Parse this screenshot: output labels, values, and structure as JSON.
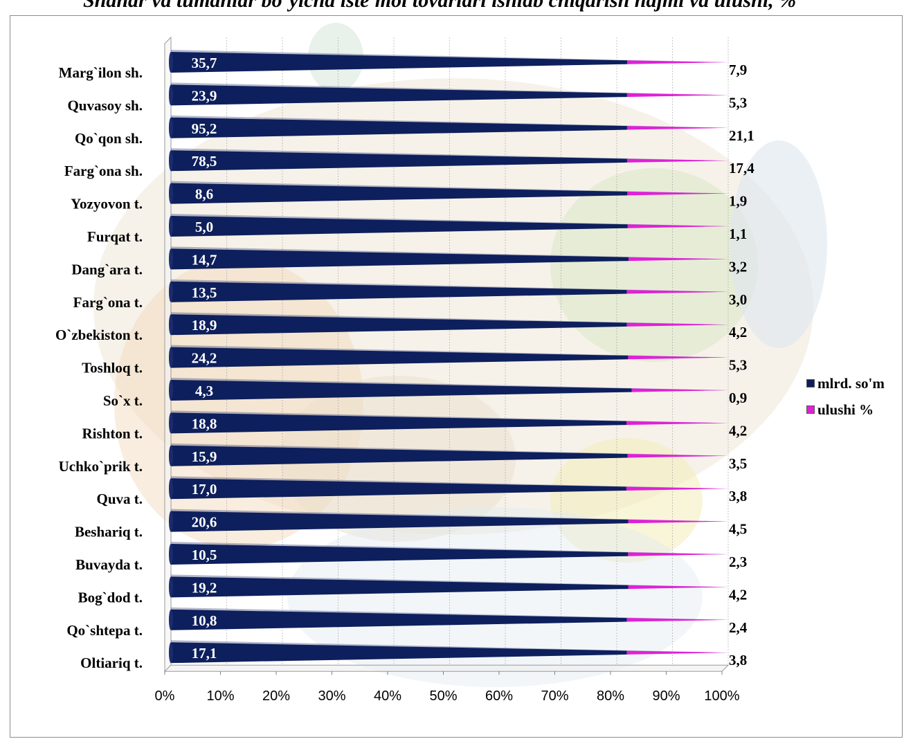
{
  "page_title": "Shahar va tumanlar bo`yicha iste'mol tovarlari ishlab chiqarish hajmi va ulushi, %",
  "colors": {
    "series_1": "#0d1f5c",
    "series_2": "#e020d8"
  },
  "chart_data": {
    "type": "bar",
    "orientation": "horizontal",
    "stacking": "percent",
    "style": "3d-cone",
    "title": "",
    "xlabel": "",
    "ylabel": "",
    "xlim": [
      0,
      100
    ],
    "x_ticks": [
      "0%",
      "10%",
      "20%",
      "30%",
      "40%",
      "50%",
      "60%",
      "70%",
      "80%",
      "90%",
      "100%"
    ],
    "grid": true,
    "legend_position": "right",
    "categories": [
      "Marg`ilon sh.",
      "Quvasoy sh.",
      "Qo`qon sh.",
      "Farg`ona sh.",
      "Yozyovon t.",
      "Furqat t.",
      "Dang`ara t.",
      "Farg`ona t.",
      "O`zbekiston t.",
      "Toshloq t.",
      "So`x t.",
      "Rishton t.",
      "Uchko`prik t.",
      "Quva t.",
      "Beshariq t.",
      "Buvayda t.",
      "Bog`dod t.",
      "Qo`shtepa t.",
      "Oltiariq t."
    ],
    "series": [
      {
        "name": "mlrd. so'm",
        "values": [
          35.7,
          23.9,
          95.2,
          78.5,
          8.6,
          5.0,
          14.7,
          13.5,
          18.9,
          24.2,
          4.3,
          18.8,
          15.9,
          17.0,
          20.6,
          10.5,
          19.2,
          10.8,
          17.1
        ],
        "labels": [
          "35,7",
          "23,9",
          "95,2",
          "78,5",
          "8,6",
          "5,0",
          "14,7",
          "13,5",
          "18,9",
          "24,2",
          "4,3",
          "18,8",
          "15,9",
          "17,0",
          "20,6",
          "10,5",
          "19,2",
          "10,8",
          "17,1"
        ]
      },
      {
        "name": "ulushi %",
        "values": [
          7.9,
          5.3,
          21.1,
          17.4,
          1.9,
          1.1,
          3.2,
          3.0,
          4.2,
          5.3,
          0.9,
          4.2,
          3.5,
          3.8,
          4.5,
          2.3,
          4.2,
          2.4,
          3.8
        ],
        "labels": [
          "7,9",
          "5,3",
          "21,1",
          "17,4",
          "1,9",
          "1,1",
          "3,2",
          "3,0",
          "4,2",
          "5,3",
          "0,9",
          "4,2",
          "3,5",
          "3,8",
          "4,5",
          "2,3",
          "4,2",
          "2,4",
          "3,8"
        ]
      }
    ]
  }
}
